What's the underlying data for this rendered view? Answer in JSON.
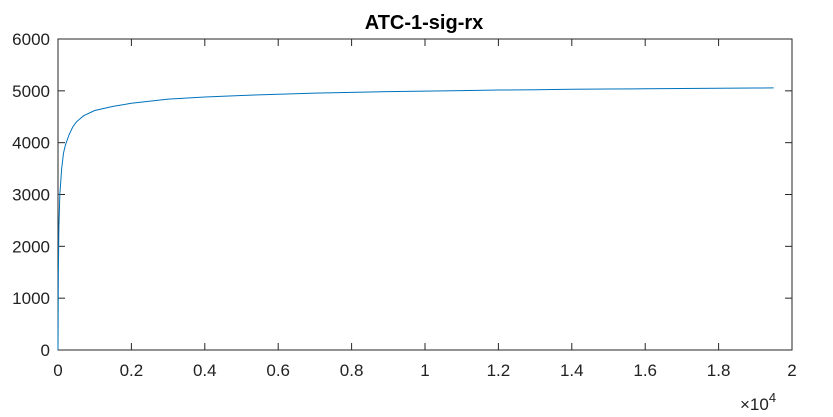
{
  "chart_data": {
    "type": "line",
    "title": "ATC-1-sig-rx",
    "xlabel": "",
    "ylabel": "",
    "xlim": [
      0,
      20000
    ],
    "ylim": [
      0,
      6000
    ],
    "x_tick_values": [
      0,
      2000,
      4000,
      6000,
      8000,
      10000,
      12000,
      14000,
      16000,
      18000,
      20000
    ],
    "x_tick_labels": [
      "0",
      "0.2",
      "0.4",
      "0.6",
      "0.8",
      "1",
      "1.2",
      "1.4",
      "1.6",
      "1.8",
      "2"
    ],
    "x_exponent_label": "×10",
    "x_exponent_power": "4",
    "y_tick_values": [
      0,
      1000,
      2000,
      3000,
      4000,
      5000,
      6000
    ],
    "y_tick_labels": [
      "0",
      "1000",
      "2000",
      "3000",
      "4000",
      "5000",
      "6000"
    ],
    "grid": false,
    "line_color": "#0072bd",
    "series": [
      {
        "x": [
          0,
          10,
          25,
          50,
          100,
          150,
          200,
          300,
          400,
          500,
          700,
          1000,
          1500,
          2000,
          3000,
          4000,
          5000,
          6000,
          7000,
          8000,
          9000,
          10000,
          11000,
          12000,
          13000,
          14000,
          15000,
          16000,
          17000,
          18000,
          19000,
          19500
        ],
        "y": [
          0,
          1500,
          2400,
          3000,
          3500,
          3800,
          3950,
          4150,
          4300,
          4400,
          4520,
          4620,
          4700,
          4760,
          4840,
          4880,
          4910,
          4935,
          4955,
          4970,
          4985,
          4995,
          5005,
          5015,
          5022,
          5030,
          5035,
          5040,
          5045,
          5050,
          5055,
          5057
        ]
      }
    ]
  }
}
